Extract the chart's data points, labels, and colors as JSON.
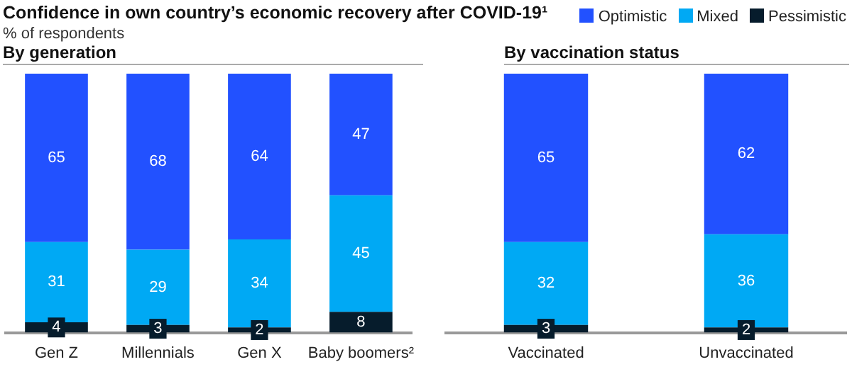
{
  "chart_data": [
    {
      "type": "bar",
      "title": "Confidence in own country’s economic recovery after  COVID-19¹",
      "subtitle": "% of respondents",
      "annotations": [
        "By generation"
      ],
      "stacked": true,
      "tick_labels": "x",
      "data_labels": true,
      "legend": false,
      "grid": false,
      "categories": [
        "Gen Z",
        "Millennials",
        "Gen X",
        "Baby boomers²"
      ],
      "series": [
        {
          "color": "#061c2c",
          "values": [
            4,
            3,
            2,
            8
          ]
        },
        {
          "color": "#00a9f4",
          "values": [
            31,
            29,
            34,
            45
          ]
        },
        {
          "color": "#2251ff",
          "values": [
            65,
            68,
            64,
            47
          ]
        }
      ]
    },
    {
      "type": "bar",
      "title": "By vaccination status",
      "stacked": true,
      "tick_labels": "x",
      "data_labels": true,
      "legend": "top right",
      "grid": false,
      "categories": [
        "Vaccinated",
        "Unvaccinated"
      ],
      "series": [
        {
          "name": "Pessimistic",
          "color": "#061c2c",
          "values": [
            3,
            2
          ]
        },
        {
          "name": "Mixed",
          "color": "#00a9f4",
          "values": [
            32,
            36
          ]
        },
        {
          "name": "Optimistic",
          "color": "#2251ff",
          "values": [
            65,
            62
          ]
        }
      ]
    }
  ]
}
